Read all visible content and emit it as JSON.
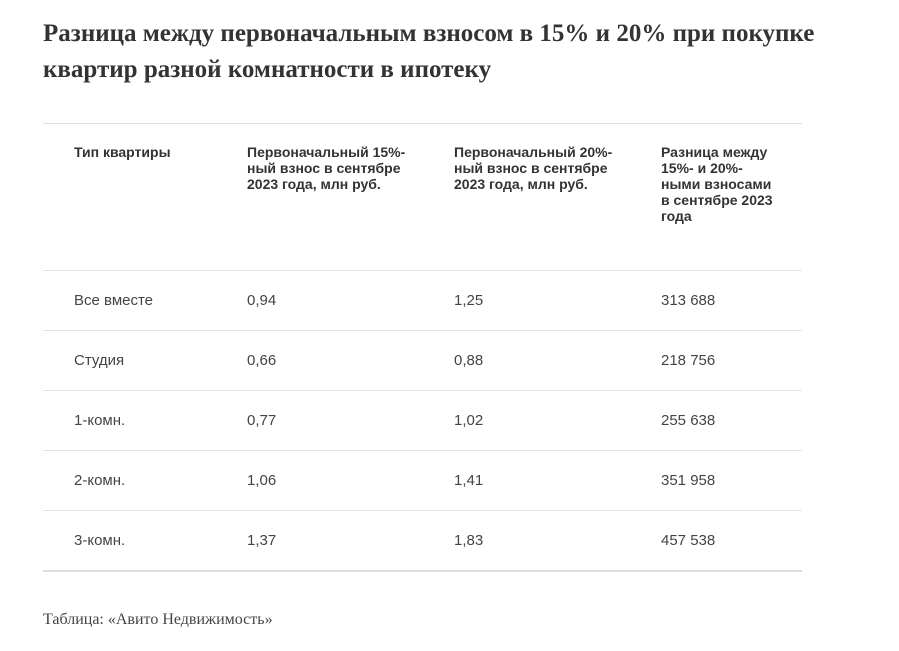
{
  "title": "Разница между первоначальным взносом в 15% и 20% при покупке квартир разной комнатности в ипотеку",
  "table": {
    "headers": [
      "Тип квартиры",
      "Первоначальный 15%-ный взнос в сентябре 2023 года, млн руб.",
      "Первоначальный 20%-ный взнос в сентябре 2023 года, млн руб.",
      "Разница между 15%- и 20%-ными взносами в сентябре 2023 года"
    ],
    "rows": [
      [
        "Все вместе",
        "0,94",
        "1,25",
        "313 688"
      ],
      [
        "Студия",
        "0,66",
        "0,88",
        "218 756"
      ],
      [
        "1-комн.",
        "0,77",
        "1,02",
        "255 638"
      ],
      [
        "2-комн.",
        "1,06",
        "1,41",
        "351 958"
      ],
      [
        "3-комн.",
        "1,37",
        "1,83",
        "457 538"
      ]
    ]
  },
  "source": "Таблица: «Авито Недвижимость»"
}
